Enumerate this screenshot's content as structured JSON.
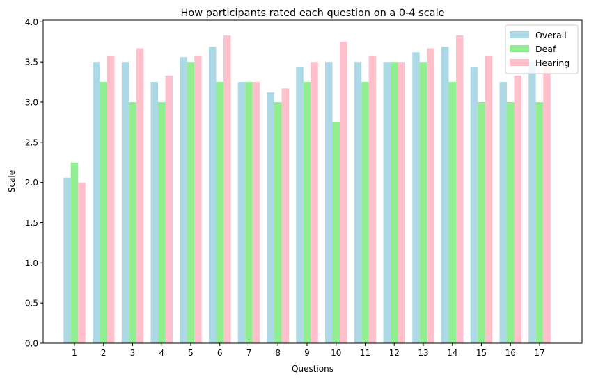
{
  "chart_data": {
    "type": "bar",
    "title": "How participants rated each question on a 0-4 scale",
    "xlabel": "Questions",
    "ylabel": "Scale",
    "ylim": [
      0,
      4.02
    ],
    "yticks": [
      "0.0",
      "0.5",
      "1.0",
      "1.5",
      "2.0",
      "2.5",
      "3.0",
      "3.5",
      "4.0"
    ],
    "categories": [
      "1",
      "2",
      "3",
      "4",
      "5",
      "6",
      "7",
      "8",
      "9",
      "10",
      "11",
      "12",
      "13",
      "14",
      "15",
      "16",
      "17"
    ],
    "legend_position": "top-right",
    "grid": false,
    "series": [
      {
        "name": "Overall",
        "color": "#add8e6",
        "values": [
          2.06,
          3.5,
          3.5,
          3.25,
          3.56,
          3.69,
          3.25,
          3.12,
          3.44,
          3.5,
          3.5,
          3.5,
          3.62,
          3.69,
          3.44,
          3.25,
          3.5
        ]
      },
      {
        "name": "Deaf",
        "color": "#90ee90",
        "values": [
          2.25,
          3.25,
          3.0,
          3.0,
          3.5,
          3.25,
          3.25,
          3.0,
          3.25,
          2.75,
          3.25,
          3.5,
          3.5,
          3.25,
          3.0,
          3.0,
          3.0
        ]
      },
      {
        "name": "Hearing",
        "color": "#ffc0cb",
        "values": [
          2.0,
          3.58,
          3.67,
          3.33,
          3.58,
          3.83,
          3.25,
          3.17,
          3.5,
          3.75,
          3.58,
          3.5,
          3.67,
          3.83,
          3.58,
          3.33,
          3.5
        ]
      }
    ]
  }
}
